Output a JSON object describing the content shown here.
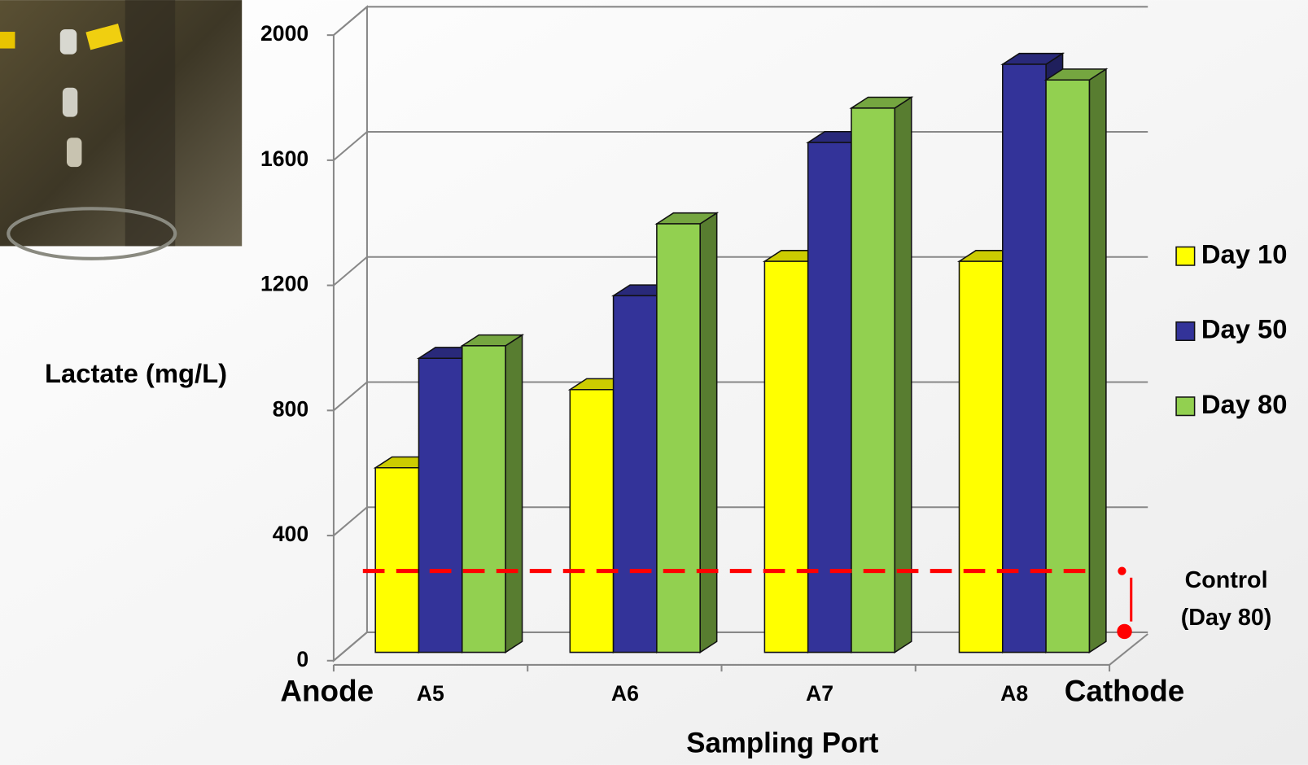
{
  "chart_data": {
    "type": "bar3d",
    "y_label": "Lactate  (mg/L)",
    "x_label": "Sampling Port",
    "categories": [
      "A5",
      "A6",
      "A7",
      "A8"
    ],
    "series": [
      {
        "name": "Day 10",
        "color": "#ffff00",
        "values": [
          590,
          840,
          1250,
          1250
        ]
      },
      {
        "name": "Day 50",
        "color": "#333399",
        "values": [
          940,
          1140,
          1630,
          1880
        ]
      },
      {
        "name": "Day 80",
        "color": "#92d050",
        "values": [
          980,
          1370,
          1740,
          1830
        ]
      }
    ],
    "ylim": [
      0,
      2000
    ],
    "yticks": [
      0,
      400,
      800,
      1200,
      1600,
      2000
    ],
    "grid": true,
    "legend": "right",
    "ends": {
      "left": "Anode",
      "right": "Cathode",
      "color": "#1f5aa0"
    },
    "control": {
      "lines": [
        "Control",
        "(Day 80)"
      ],
      "value": 260,
      "color": "#ff0000",
      "text_color": "#c00000"
    }
  }
}
